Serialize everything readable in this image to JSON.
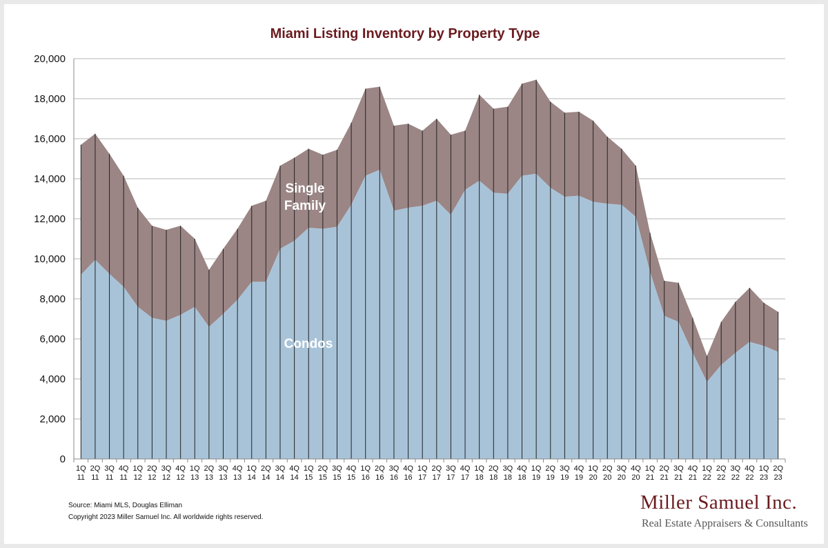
{
  "chart_data": {
    "type": "area",
    "stacked": true,
    "title": "Miami Listing Inventory by Property Type",
    "ylim": [
      0,
      20000
    ],
    "yticks": [
      "0",
      "2,000",
      "4,000",
      "6,000",
      "8,000",
      "10,000",
      "12,000",
      "14,000",
      "16,000",
      "18,000",
      "20,000"
    ],
    "grid": true,
    "categories": [
      [
        "1Q",
        "11"
      ],
      [
        "2Q",
        "11"
      ],
      [
        "3Q",
        "11"
      ],
      [
        "4Q",
        "11"
      ],
      [
        "1Q",
        "12"
      ],
      [
        "2Q",
        "12"
      ],
      [
        "3Q",
        "12"
      ],
      [
        "4Q",
        "12"
      ],
      [
        "1Q",
        "13"
      ],
      [
        "2Q",
        "13"
      ],
      [
        "3Q",
        "13"
      ],
      [
        "4Q",
        "13"
      ],
      [
        "1Q",
        "14"
      ],
      [
        "2Q",
        "14"
      ],
      [
        "3Q",
        "14"
      ],
      [
        "4Q",
        "14"
      ],
      [
        "1Q",
        "15"
      ],
      [
        "2Q",
        "15"
      ],
      [
        "3Q",
        "15"
      ],
      [
        "4Q",
        "15"
      ],
      [
        "1Q",
        "16"
      ],
      [
        "2Q",
        "16"
      ],
      [
        "3Q",
        "16"
      ],
      [
        "4Q",
        "16"
      ],
      [
        "1Q",
        "17"
      ],
      [
        "2Q",
        "17"
      ],
      [
        "3Q",
        "17"
      ],
      [
        "4Q",
        "17"
      ],
      [
        "1Q",
        "18"
      ],
      [
        "2Q",
        "18"
      ],
      [
        "3Q",
        "18"
      ],
      [
        "4Q",
        "18"
      ],
      [
        "1Q",
        "19"
      ],
      [
        "2Q",
        "19"
      ],
      [
        "3Q",
        "19"
      ],
      [
        "4Q",
        "19"
      ],
      [
        "1Q",
        "20"
      ],
      [
        "2Q",
        "20"
      ],
      [
        "3Q",
        "20"
      ],
      [
        "4Q",
        "20"
      ],
      [
        "1Q",
        "21"
      ],
      [
        "2Q",
        "21"
      ],
      [
        "3Q",
        "21"
      ],
      [
        "4Q",
        "21"
      ],
      [
        "1Q",
        "22"
      ],
      [
        "2Q",
        "22"
      ],
      [
        "3Q",
        "22"
      ],
      [
        "4Q",
        "22"
      ],
      [
        "1Q",
        "23"
      ],
      [
        "2Q",
        "23"
      ]
    ],
    "series": [
      {
        "name": "Condos",
        "color": "#a8c3d8",
        "values": [
          9200,
          9950,
          9250,
          8600,
          7600,
          7050,
          6900,
          7200,
          7600,
          6600,
          7250,
          7950,
          8850,
          8850,
          10500,
          10900,
          11550,
          11500,
          11600,
          12700,
          14150,
          14450,
          12400,
          12550,
          12650,
          12900,
          12200,
          13450,
          13900,
          13300,
          13250,
          14150,
          14250,
          13550,
          13100,
          13150,
          12850,
          12750,
          12700,
          12100,
          9350,
          7150,
          6850,
          5300,
          3850,
          4700,
          5300,
          5850,
          5650,
          5350
        ]
      },
      {
        "name": "Single Family",
        "color": "#9b8585",
        "values": [
          6500,
          6300,
          6000,
          5550,
          4950,
          4600,
          4550,
          4450,
          3400,
          2850,
          3250,
          3550,
          3800,
          4050,
          4150,
          4150,
          3950,
          3700,
          3850,
          4100,
          4350,
          4150,
          4250,
          4200,
          3750,
          4100,
          4000,
          2950,
          4300,
          4200,
          4350,
          4600,
          4700,
          4300,
          4200,
          4200,
          4050,
          3350,
          2800,
          2550,
          1950,
          1750,
          1950,
          1750,
          1300,
          2150,
          2550,
          2700,
          2150,
          2000
        ]
      }
    ],
    "annotations": [
      {
        "lines": [
          "Single",
          "Family"
        ]
      },
      {
        "lines": [
          "Condos"
        ]
      }
    ]
  },
  "footer": {
    "source": "Source: Miami MLS, Douglas Elliman",
    "copyright": "Copyright 2023 Miller Samuel Inc.  All worldwide rights reserved."
  },
  "logo": {
    "name": "Miller Samuel Inc.",
    "tagline": "Real Estate Appraisers & Consultants"
  }
}
